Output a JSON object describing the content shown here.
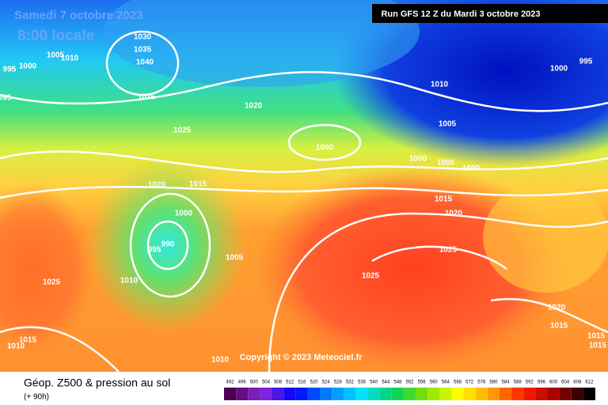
{
  "header": {
    "date": "Samedi 7 octobre 2023",
    "time": "8:00 locale",
    "run": "Run GFS 12 Z du Mardi 3 octobre 2023"
  },
  "copyright": "Copyright © 2023 Meteociel.fr",
  "legend": {
    "title": "Géop. Z500 & pression au sol",
    "lead": "(+ 90h)",
    "ticks": [
      492,
      496,
      500,
      504,
      508,
      512,
      516,
      520,
      524,
      528,
      532,
      536,
      540,
      544,
      548,
      552,
      556,
      560,
      564,
      568,
      572,
      576,
      580,
      584,
      588,
      592,
      596,
      600,
      604,
      608,
      612
    ]
  },
  "isobar_labels": [
    "995",
    "1000",
    "1005",
    "1010",
    "1030",
    "1035",
    "1040",
    "1025",
    "995",
    "1020",
    "1025",
    "1000",
    "1010",
    "1005",
    "1000",
    "1000",
    "1000",
    "1000",
    "995",
    "1020",
    "1015",
    "1000",
    "990",
    "995",
    "1005",
    "1010",
    "1025",
    "1015",
    "1020",
    "1025",
    "1025",
    "1020",
    "1015",
    "1015",
    "1010",
    "1015",
    "1015",
    "1010"
  ]
}
